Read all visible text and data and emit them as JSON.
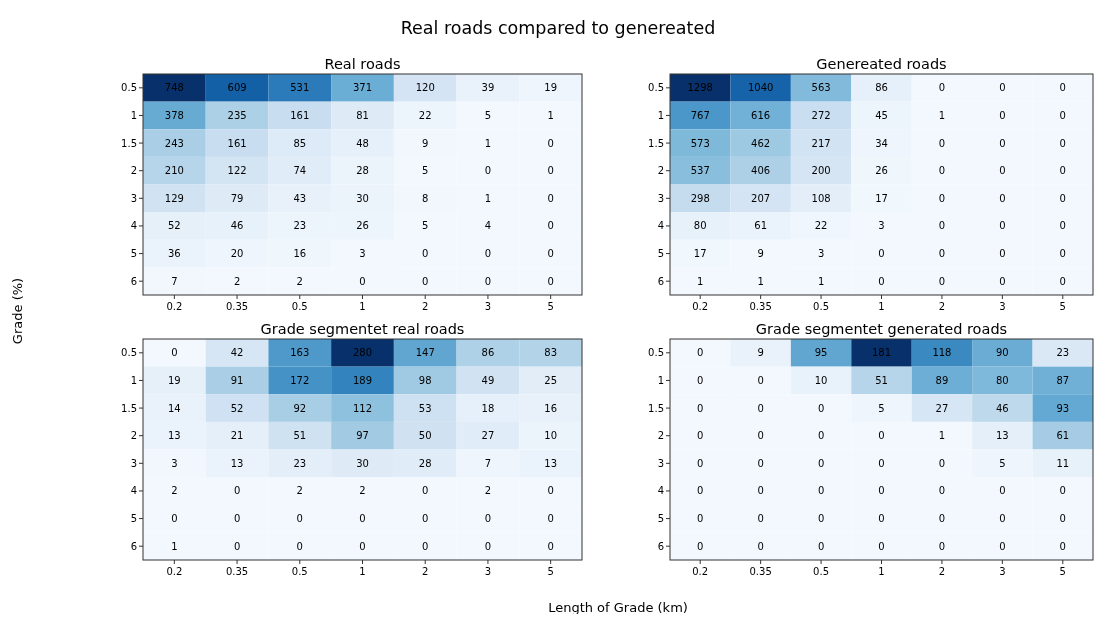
{
  "chart_data": [
    {
      "type": "heatmap",
      "title": "Real roads",
      "annotations": [
        "Real roads compared to genereated"
      ],
      "ylabel": "Grade (%)",
      "data_labels": true,
      "categories": [
        "0.2",
        "0.35",
        "0.5",
        "1",
        "2",
        "3",
        "5"
      ],
      "y_categories": [
        "0.5",
        "1",
        "1.5",
        "2",
        "3",
        "4",
        "5",
        "6"
      ],
      "cells": [
        [
          748,
          609,
          531,
          371,
          120,
          39,
          19
        ],
        [
          378,
          235,
          161,
          81,
          22,
          5,
          1
        ],
        [
          243,
          161,
          85,
          48,
          9,
          1,
          0
        ],
        [
          210,
          122,
          74,
          28,
          5,
          0,
          0
        ],
        [
          129,
          79,
          43,
          30,
          8,
          1,
          0
        ],
        [
          52,
          46,
          23,
          26,
          5,
          4,
          0
        ],
        [
          36,
          20,
          16,
          3,
          0,
          0,
          0
        ],
        [
          7,
          2,
          2,
          0,
          0,
          0,
          0
        ]
      ]
    },
    {
      "type": "heatmap",
      "title": "Genereated roads",
      "data_labels": true,
      "categories": [
        "0.2",
        "0.35",
        "0.5",
        "1",
        "2",
        "3",
        "5"
      ],
      "y_categories": [
        "0.5",
        "1",
        "1.5",
        "2",
        "3",
        "4",
        "5",
        "6"
      ],
      "cells": [
        [
          1298,
          1040,
          563,
          86,
          0,
          0,
          0
        ],
        [
          767,
          616,
          272,
          45,
          1,
          0,
          0
        ],
        [
          573,
          462,
          217,
          34,
          0,
          0,
          0
        ],
        [
          537,
          406,
          200,
          26,
          0,
          0,
          0
        ],
        [
          298,
          207,
          108,
          17,
          0,
          0,
          0
        ],
        [
          80,
          61,
          22,
          3,
          0,
          0,
          0
        ],
        [
          17,
          9,
          3,
          0,
          0,
          0,
          0
        ],
        [
          1,
          1,
          1,
          0,
          0,
          0,
          0
        ]
      ]
    },
    {
      "type": "heatmap",
      "title": "Grade segmentet real roads",
      "xlabel": "Length of Grade (km)",
      "data_labels": true,
      "categories": [
        "0.2",
        "0.35",
        "0.5",
        "1",
        "2",
        "3",
        "5"
      ],
      "y_categories": [
        "0.5",
        "1",
        "1.5",
        "2",
        "3",
        "4",
        "5",
        "6"
      ],
      "cells": [
        [
          0,
          42,
          163,
          280,
          147,
          86,
          83
        ],
        [
          19,
          91,
          172,
          189,
          98,
          49,
          25
        ],
        [
          14,
          52,
          92,
          112,
          53,
          18,
          16
        ],
        [
          13,
          21,
          51,
          97,
          50,
          27,
          10
        ],
        [
          3,
          13,
          23,
          30,
          28,
          7,
          13
        ],
        [
          2,
          0,
          2,
          2,
          0,
          2,
          0
        ],
        [
          0,
          0,
          0,
          0,
          0,
          0,
          0
        ],
        [
          1,
          0,
          0,
          0,
          0,
          0,
          0
        ]
      ]
    },
    {
      "type": "heatmap",
      "title": "Grade segmentet generated roads",
      "data_labels": true,
      "categories": [
        "0.2",
        "0.35",
        "0.5",
        "1",
        "2",
        "3",
        "5"
      ],
      "y_categories": [
        "0.5",
        "1",
        "1.5",
        "2",
        "3",
        "4",
        "5",
        "6"
      ],
      "cells": [
        [
          0,
          9,
          95,
          181,
          118,
          90,
          23
        ],
        [
          0,
          0,
          10,
          51,
          89,
          80,
          87
        ],
        [
          0,
          0,
          0,
          5,
          27,
          46,
          93
        ],
        [
          0,
          0,
          0,
          0,
          1,
          13,
          61
        ],
        [
          0,
          0,
          0,
          0,
          0,
          5,
          11
        ],
        [
          0,
          0,
          0,
          0,
          0,
          0,
          0
        ],
        [
          0,
          0,
          0,
          0,
          0,
          0,
          0
        ],
        [
          0,
          0,
          0,
          0,
          0,
          0,
          0
        ]
      ]
    }
  ]
}
